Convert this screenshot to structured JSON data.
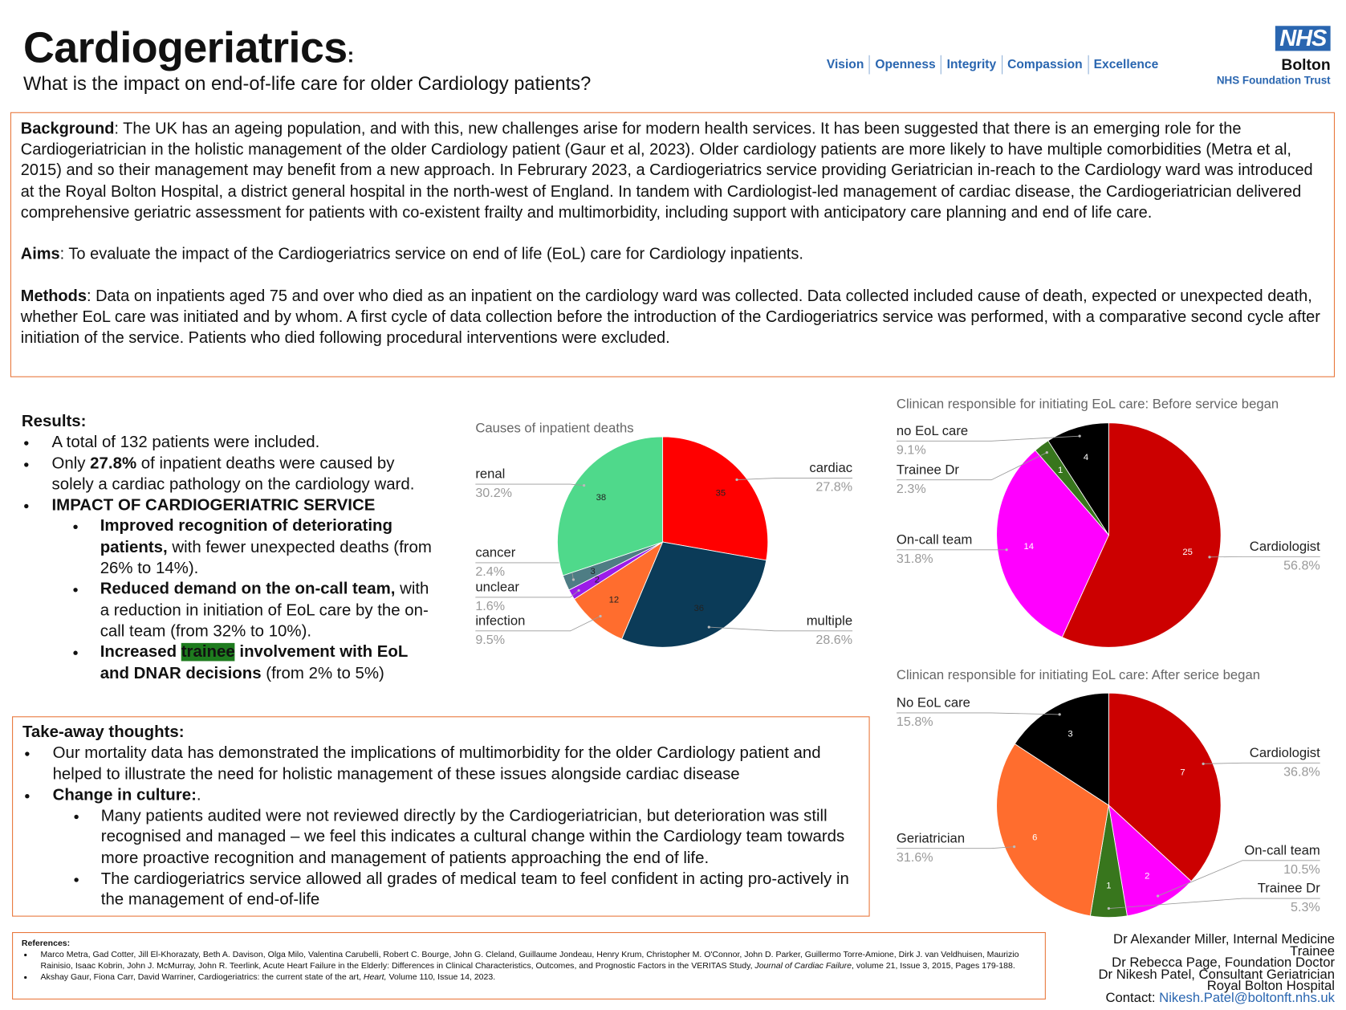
{
  "header": {
    "title": "Cardiogeriatrics",
    "title_suffix": ":",
    "subtitle": "What is the impact on end-of-life care for older Cardiology patients?",
    "values": [
      "Vision",
      "Openness",
      "Integrity",
      "Compassion",
      "Excellence"
    ],
    "logo": {
      "nhs": "NHS",
      "org": "Bolton",
      "trust": "NHS Foundation Trust"
    }
  },
  "intro": {
    "background": {
      "label": "Background",
      "text": ": The UK has an ageing population, and with this, new challenges arise for modern health services. It has been suggested that there is an emerging role for the Cardiogeriatrician in the holistic management of the older Cardiology patient (Gaur et al, 2023). Older cardiology patients are more likely to have multiple comorbidities (Metra et al, 2015) and so their management may benefit from a new approach. In Februrary 2023, a Cardiogeriatrics service providing Geriatrician in-reach to the Cardiology ward was introduced at the Royal Bolton Hospital, a district general hospital in the north-west of England. In tandem with Cardiologist-led management of cardiac disease, the Cardiogeriatrician delivered comprehensive geriatric assessment for patients with co-existent frailty and multimorbidity, including support with anticipatory care planning and end of life care."
    },
    "aims": {
      "label": "Aims",
      "text": ": To evaluate the impact of the Cardiogeriatrics service on end of life (EoL) care for Cardiology inpatients."
    },
    "methods": {
      "label": "Methods",
      "text": ": Data on inpatients aged 75 and over who died as an inpatient on the cardiology ward was collected. Data collected included cause of death, expected or unexpected death, whether EoL care was initiated and by whom. A first cycle of data collection before the introduction of the Cardiogeriatrics service was performed, with a comparative second cycle after initiation of the service. Patients who died following procedural interventions were excluded."
    }
  },
  "results": {
    "heading": "Results:",
    "items": [
      "A total of 132 patients were included.",
      [
        "Only ",
        "27.8%",
        " of inpatient deaths were caused by solely a cardiac pathology on the cardiology ward."
      ],
      "IMPACT OF CARDIOGERIATRIC SERVICE"
    ],
    "subitems": [
      [
        "Improved recognition of deteriorating patients,",
        " with fewer unexpected deaths (from 26% to 14%)."
      ],
      [
        "Reduced demand on the on-call team,",
        " with a reduction in initiation of EoL care by the on-call team (from 32% to 10%)."
      ],
      [
        "Increased ",
        "trainee",
        " involvement with EoL and DNAR decisions",
        " (from 2% to 5%)"
      ]
    ]
  },
  "takeaway": {
    "heading": "Take-away thoughts:",
    "items": [
      "Our mortality data has demonstrated the implications of multimorbidity for the older Cardiology patient and helped to illustrate the need for holistic management of these issues alongside cardiac disease",
      [
        "Change in culture:",
        "."
      ]
    ],
    "subitems": [
      "Many patients audited were not reviewed directly by the Cardiogeriatrician, but deterioration was still recognised and managed – we feel this indicates a cultural change within the Cardiology team towards more proactive recognition and management of patients approaching the end of life.",
      "The cardiogeriatrics service allowed all grades of medical team to feel confident in acting pro-actively in the management of end-of-life"
    ]
  },
  "references": {
    "heading": "References:",
    "items": [
      [
        "Marco Metra, Gad Cotter, Jill El-Khorazaty, Beth A. Davison, Olga Milo, Valentina Carubelli, Robert C. Bourge, John G. Cleland, Guillaume Jondeau, Henry Krum, Christopher M. O'Connor, John D. Parker, Guillermo Torre-Amione, Dirk J. van Veldhuisen, Maurizio Rainisio, Isaac Kobrin, John J. McMurray, John R. Teerlink, Acute Heart Failure in the Elderly: Differences in Clinical Characteristics, Outcomes, and Prognostic Factors in the VERITAS Study, ",
        "Journal of Cardiac Failure",
        ", volume 21, Issue 3, 2015, Pages 179-188."
      ],
      [
        "Akshay Gaur, Fiona Carr, David Warriner, Cardiogeriatrics: the current state of the art, ",
        "Heart,",
        " Volume 110, Issue 14, 2023."
      ]
    ]
  },
  "authors": {
    "lines": [
      "Dr Alexander Miller, Internal Medicine Trainee",
      "Dr Rebecca Page, Foundation Doctor",
      "Dr Nikesh Patel, Consultant Geriatrician",
      "Royal Bolton Hospital"
    ],
    "contact_label": "Contact:",
    "email": "Nikesh.Patel@boltonft.nhs.uk"
  },
  "chart_data": [
    {
      "type": "pie",
      "title": "Causes of inpatient deaths",
      "categories": [
        "cardiac",
        "multiple",
        "infection",
        "unclear",
        "cancer",
        "renal"
      ],
      "values": [
        35,
        36,
        12,
        2,
        3,
        38
      ],
      "percent_labels": [
        "27.8%",
        "28.6%",
        "9.5%",
        "1.6%",
        "2.4%",
        "30.2%"
      ],
      "colors": [
        "#ff0000",
        "#0b3b58",
        "#ff6d2e",
        "#9b1ce8",
        "#4e7d84",
        "#4fd98b"
      ],
      "value_label_color": "#222222"
    },
    {
      "type": "pie",
      "title": "Clinican responsible for initiating EoL care: Before service began",
      "categories": [
        "Cardiologist",
        "On-call team",
        "Trainee Dr",
        "no EoL care"
      ],
      "values": [
        25,
        14,
        1,
        4
      ],
      "percent_labels": [
        "56.8%",
        "31.8%",
        "2.3%",
        "9.1%"
      ],
      "colors": [
        "#cc0000",
        "#ff00ff",
        "#38761d",
        "#000000"
      ],
      "value_label_color": "#ffffff"
    },
    {
      "type": "pie",
      "title": "Clinican responsible for initiating EoL care: After serice began",
      "categories": [
        "Cardiologist",
        "On-call team",
        "Trainee Dr",
        "Geriatrician",
        "No EoL care"
      ],
      "values": [
        7,
        2,
        1,
        6,
        3
      ],
      "percent_labels": [
        "36.8%",
        "10.5%",
        "5.3%",
        "31.6%",
        "15.8%"
      ],
      "colors": [
        "#cc0000",
        "#ff00ff",
        "#38761d",
        "#ff6d2e",
        "#000000"
      ],
      "value_label_color": "#ffffff"
    }
  ]
}
